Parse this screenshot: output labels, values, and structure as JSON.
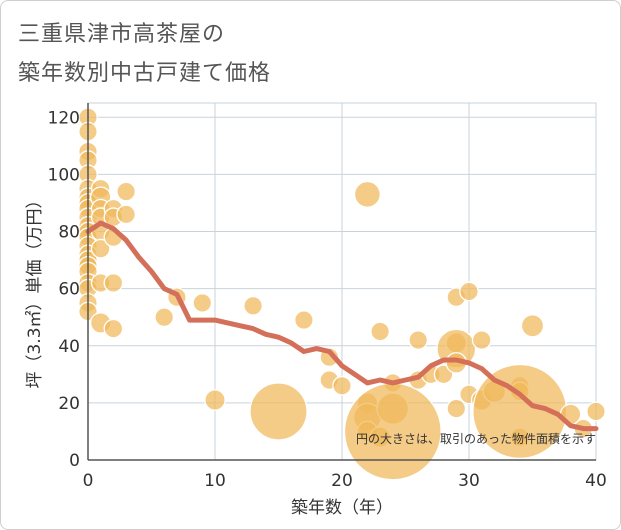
{
  "chart_data": {
    "type": "scatter",
    "title": [
      "三重県津市高茶屋の",
      "築年数別中古戸建て価格"
    ],
    "xlabel": "築年数（年）",
    "ylabel": "坪（3.3㎡）単価（万円）",
    "xlim": [
      0,
      40
    ],
    "ylim": [
      0,
      125
    ],
    "xticks": [
      0,
      10,
      20,
      30,
      40
    ],
    "yticks": [
      0,
      20,
      40,
      60,
      80,
      100,
      120
    ],
    "grid": true,
    "annotation": "円の大きさは、取引のあった物件面積を示す",
    "colors": {
      "bubble": "#f0b85a",
      "line": "#d4705a",
      "grid": "#c9d3dc",
      "text": "#333333"
    },
    "bubbles": [
      {
        "x": 0,
        "y": 120,
        "s": 2
      },
      {
        "x": 0,
        "y": 115,
        "s": 2
      },
      {
        "x": 0,
        "y": 108,
        "s": 2
      },
      {
        "x": 0,
        "y": 105,
        "s": 2
      },
      {
        "x": 0,
        "y": 100,
        "s": 2
      },
      {
        "x": 0,
        "y": 95,
        "s": 2
      },
      {
        "x": 0,
        "y": 92,
        "s": 2
      },
      {
        "x": 0,
        "y": 90,
        "s": 2
      },
      {
        "x": 0,
        "y": 88,
        "s": 2
      },
      {
        "x": 0,
        "y": 85,
        "s": 2
      },
      {
        "x": 0,
        "y": 82,
        "s": 2
      },
      {
        "x": 0,
        "y": 80,
        "s": 2
      },
      {
        "x": 0,
        "y": 78,
        "s": 2
      },
      {
        "x": 0,
        "y": 75,
        "s": 2
      },
      {
        "x": 0,
        "y": 72,
        "s": 2
      },
      {
        "x": 0,
        "y": 70,
        "s": 2
      },
      {
        "x": 0,
        "y": 68,
        "s": 2
      },
      {
        "x": 0,
        "y": 66,
        "s": 2
      },
      {
        "x": 0,
        "y": 62,
        "s": 2
      },
      {
        "x": 0,
        "y": 60,
        "s": 2
      },
      {
        "x": 0,
        "y": 55,
        "s": 2
      },
      {
        "x": 0,
        "y": 52,
        "s": 2
      },
      {
        "x": 1,
        "y": 95,
        "s": 2
      },
      {
        "x": 1,
        "y": 92,
        "s": 2.2
      },
      {
        "x": 1,
        "y": 88,
        "s": 2
      },
      {
        "x": 1,
        "y": 85,
        "s": 2
      },
      {
        "x": 1,
        "y": 80,
        "s": 2
      },
      {
        "x": 1,
        "y": 74,
        "s": 2
      },
      {
        "x": 1,
        "y": 62,
        "s": 2
      },
      {
        "x": 1,
        "y": 48,
        "s": 2.2
      },
      {
        "x": 2,
        "y": 88,
        "s": 2
      },
      {
        "x": 2,
        "y": 85,
        "s": 2
      },
      {
        "x": 2,
        "y": 78,
        "s": 2
      },
      {
        "x": 2,
        "y": 62,
        "s": 2
      },
      {
        "x": 2,
        "y": 46,
        "s": 2
      },
      {
        "x": 3,
        "y": 94,
        "s": 2
      },
      {
        "x": 3,
        "y": 86,
        "s": 2
      },
      {
        "x": 6,
        "y": 50,
        "s": 2
      },
      {
        "x": 7,
        "y": 57,
        "s": 2
      },
      {
        "x": 9,
        "y": 55,
        "s": 2
      },
      {
        "x": 10,
        "y": 21,
        "s": 2.2
      },
      {
        "x": 13,
        "y": 54,
        "s": 2
      },
      {
        "x": 15,
        "y": 17,
        "s": 6.2
      },
      {
        "x": 17,
        "y": 49,
        "s": 2
      },
      {
        "x": 19,
        "y": 28,
        "s": 2
      },
      {
        "x": 19,
        "y": 36,
        "s": 2
      },
      {
        "x": 20,
        "y": 26,
        "s": 2
      },
      {
        "x": 22,
        "y": 93,
        "s": 2.8
      },
      {
        "x": 22,
        "y": 20,
        "s": 2.2
      },
      {
        "x": 22,
        "y": 15,
        "s": 3
      },
      {
        "x": 22,
        "y": 10,
        "s": 2.2
      },
      {
        "x": 23,
        "y": 45,
        "s": 2
      },
      {
        "x": 23,
        "y": 8,
        "s": 2.2
      },
      {
        "x": 24,
        "y": 27,
        "s": 2
      },
      {
        "x": 24,
        "y": 18,
        "s": 3.4
      },
      {
        "x": 24,
        "y": 10,
        "s": 10.5
      },
      {
        "x": 26,
        "y": 42,
        "s": 2
      },
      {
        "x": 26,
        "y": 28,
        "s": 2
      },
      {
        "x": 27,
        "y": 30,
        "s": 2
      },
      {
        "x": 28,
        "y": 30,
        "s": 2
      },
      {
        "x": 29,
        "y": 57,
        "s": 2
      },
      {
        "x": 29,
        "y": 41,
        "s": 2.2
      },
      {
        "x": 29,
        "y": 39,
        "s": 4.2
      },
      {
        "x": 29,
        "y": 34,
        "s": 2.2
      },
      {
        "x": 29,
        "y": 18,
        "s": 2
      },
      {
        "x": 30,
        "y": 59,
        "s": 2
      },
      {
        "x": 30,
        "y": 23,
        "s": 2
      },
      {
        "x": 31,
        "y": 42,
        "s": 2
      },
      {
        "x": 31,
        "y": 21,
        "s": 2.2
      },
      {
        "x": 32,
        "y": 24,
        "s": 2.4
      },
      {
        "x": 34,
        "y": 26,
        "s": 2
      },
      {
        "x": 34,
        "y": 24,
        "s": 2
      },
      {
        "x": 34,
        "y": 8,
        "s": 2
      },
      {
        "x": 34,
        "y": 17,
        "s": 10.2
      },
      {
        "x": 35,
        "y": 47,
        "s": 2.4
      },
      {
        "x": 38,
        "y": 16,
        "s": 2.2
      },
      {
        "x": 40,
        "y": 17,
        "s": 2
      },
      {
        "x": 39,
        "y": 11,
        "s": 2
      }
    ],
    "trend": {
      "x": [
        0,
        1,
        2,
        3,
        4,
        5,
        6,
        7,
        8,
        9,
        10,
        11,
        12,
        13,
        14,
        15,
        16,
        17,
        18,
        19,
        20,
        21,
        22,
        23,
        24,
        25,
        26,
        27,
        28,
        29,
        30,
        31,
        32,
        33,
        34,
        35,
        36,
        37,
        38,
        39,
        40
      ],
      "y": [
        80,
        83,
        81,
        77,
        71,
        66,
        60,
        58,
        49,
        49,
        49,
        48,
        47,
        46,
        44,
        43,
        41,
        38,
        39,
        38,
        33,
        30,
        27,
        28,
        27,
        28,
        29,
        33,
        35,
        35,
        34,
        32,
        28,
        26,
        23,
        19,
        18,
        16,
        12,
        11,
        11
      ]
    }
  }
}
